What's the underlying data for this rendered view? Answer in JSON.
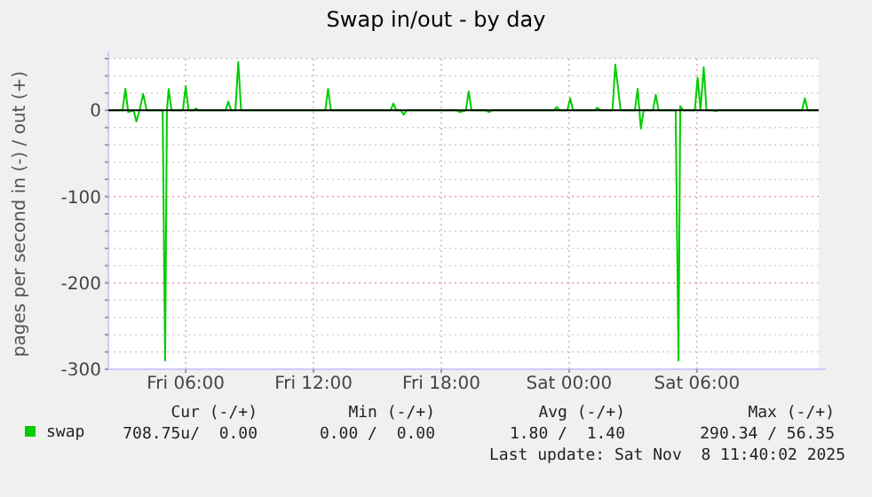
{
  "chart_data": {
    "type": "line",
    "title": "Swap in/out - by day",
    "ylabel": "pages per second in (-) / out (+)",
    "xlim": [
      "2025-11-07T02:22",
      "2025-11-08T11:43"
    ],
    "xticks": [
      {
        "value": "2025-11-07T06:00",
        "label": "Fri 06:00"
      },
      {
        "value": "2025-11-07T12:00",
        "label": "Fri 12:00"
      },
      {
        "value": "2025-11-07T18:00",
        "label": "Fri 18:00"
      },
      {
        "value": "2025-11-08T00:00",
        "label": "Sat 00:00"
      },
      {
        "value": "2025-11-08T06:00",
        "label": "Sat 06:00"
      }
    ],
    "ylim": [
      -300,
      60
    ],
    "yticks": [
      -300,
      {
        "value": -280,
        "label": null
      },
      {
        "value": -260,
        "label": null
      },
      {
        "value": -240,
        "label": null
      },
      {
        "value": -220,
        "label": null
      },
      -200,
      {
        "value": -180,
        "label": null
      },
      {
        "value": -160,
        "label": null
      },
      {
        "value": -140,
        "label": null
      },
      {
        "value": -120,
        "label": null
      },
      -100,
      {
        "value": -80,
        "label": null
      },
      {
        "value": -60,
        "label": null
      },
      {
        "value": -40,
        "label": null
      },
      {
        "value": -20,
        "label": null
      },
      0,
      {
        "value": 20,
        "label": null
      },
      {
        "value": 40,
        "label": null
      },
      {
        "value": 60,
        "label": null
      }
    ],
    "grid": true,
    "legend": "bottom",
    "marker": "none",
    "line_style": "solid",
    "ref_lines": [
      {
        "axis": "y",
        "value": 0,
        "color": "#000000"
      }
    ],
    "series": [
      {
        "name": "swap",
        "color": "#00cc00",
        "x": [
          "2025-11-07T02:25",
          "2025-11-07T03:02",
          "2025-11-07T03:10",
          "2025-11-07T03:18",
          "2025-11-07T03:33",
          "2025-11-07T03:41",
          "2025-11-07T03:50",
          "2025-11-07T04:00",
          "2025-11-07T04:10",
          "2025-11-07T04:55",
          "2025-11-07T05:02",
          "2025-11-07T05:07",
          "2025-11-07T05:12",
          "2025-11-07T05:20",
          "2025-11-07T05:52",
          "2025-11-07T06:00",
          "2025-11-07T06:08",
          "2025-11-07T06:22",
          "2025-11-07T06:29",
          "2025-11-07T06:36",
          "2025-11-07T07:52",
          "2025-11-07T08:00",
          "2025-11-07T08:08",
          "2025-11-07T08:20",
          "2025-11-07T08:28",
          "2025-11-07T08:36",
          "2025-11-07T12:33",
          "2025-11-07T12:41",
          "2025-11-07T12:49",
          "2025-11-07T15:37",
          "2025-11-07T15:45",
          "2025-11-07T15:53",
          "2025-11-07T16:06",
          "2025-11-07T16:14",
          "2025-11-07T16:22",
          "2025-11-07T18:44",
          "2025-11-07T18:52",
          "2025-11-07T19:09",
          "2025-11-07T19:17",
          "2025-11-07T19:25",
          "2025-11-07T20:06",
          "2025-11-07T20:14",
          "2025-11-07T20:22",
          "2025-11-07T23:17",
          "2025-11-07T23:25",
          "2025-11-07T23:33",
          "2025-11-07T23:55",
          "2025-11-08T00:03",
          "2025-11-08T00:11",
          "2025-11-08T01:12",
          "2025-11-08T01:20",
          "2025-11-08T01:28",
          "2025-11-08T02:02",
          "2025-11-08T02:10",
          "2025-11-08T02:25",
          "2025-11-08T03:05",
          "2025-11-08T03:13",
          "2025-11-08T03:22",
          "2025-11-08T03:30",
          "2025-11-08T03:56",
          "2025-11-08T04:04",
          "2025-11-08T04:12",
          "2025-11-08T05:00",
          "2025-11-08T05:08",
          "2025-11-08T05:13",
          "2025-11-08T05:21",
          "2025-11-08T05:54",
          "2025-11-08T06:02",
          "2025-11-08T06:10",
          "2025-11-08T06:19",
          "2025-11-08T06:27",
          "2025-11-08T06:44",
          "2025-11-08T06:52",
          "2025-11-08T07:00",
          "2025-11-08T10:56",
          "2025-11-08T11:04",
          "2025-11-08T11:12",
          "2025-11-08T11:40"
        ],
        "values": [
          0,
          0,
          25,
          -2,
          0,
          -13,
          0,
          19,
          0,
          0,
          -290,
          0,
          25,
          0,
          0,
          28,
          0,
          0,
          2,
          0,
          0,
          10,
          0,
          0,
          56,
          0,
          0,
          25,
          0,
          0,
          8,
          0,
          0,
          -5,
          0,
          0,
          -2,
          0,
          22,
          0,
          0,
          -2,
          0,
          0,
          4,
          0,
          0,
          14,
          0,
          0,
          3,
          0,
          0,
          53,
          0,
          0,
          25,
          -21,
          0,
          0,
          18,
          0,
          0,
          -290,
          5,
          0,
          0,
          38,
          0,
          50,
          0,
          0,
          -1,
          0,
          0,
          14,
          0,
          0
        ]
      }
    ],
    "annotations": [
      "Cur (-/+)",
      "Min (-/+)",
      "Avg (-/+)",
      "Max (-/+)",
      "708.75u/  0.00",
      "0.00 /  0.00",
      "1.80 /  1.40",
      "290.34 / 56.35",
      "Last update: Sat Nov  8 11:40:02 2025"
    ]
  }
}
